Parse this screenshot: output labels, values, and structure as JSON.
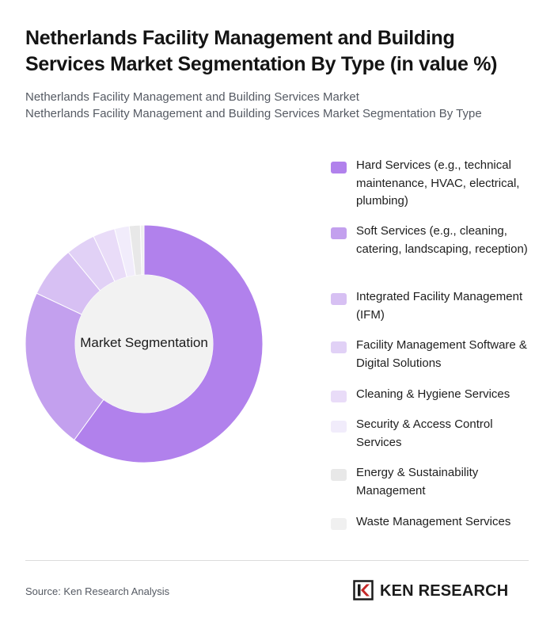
{
  "title": "Netherlands Facility Management and Building Services Market Segmentation By Type (in value %)",
  "subtitle_lines": [
    "Netherlands Facility Management and Building Services Market",
    "Netherlands Facility Management and Building Services Market Segmentation By Type"
  ],
  "chart_data": {
    "type": "pie",
    "variant": "donut",
    "center_label": "Market Segmentation",
    "categories": [
      "Hard Services (e.g., technical maintenance, HVAC, electrical, plumbing)",
      "Soft Services (e.g., cleaning, catering, landscaping, reception)",
      "Integrated Facility Management (IFM)",
      "Facility Management Software & Digital Solutions",
      "Cleaning & Hygiene Services",
      "Security & Access Control Services",
      "Energy & Sustainability Management",
      "Waste Management Services"
    ],
    "values": [
      60,
      22,
      7,
      4,
      3,
      2,
      1.5,
      0.5
    ],
    "colors": [
      "#b181ec",
      "#c3a0ee",
      "#d7c0f3",
      "#e1d1f6",
      "#e9dcf8",
      "#f1ecfb",
      "#e8e8e8",
      "#f0f0f0"
    ],
    "legend_position": "right"
  },
  "footer": {
    "source": "Source: Ken Research Analysis",
    "logo_text": "KEN RESEARCH"
  }
}
